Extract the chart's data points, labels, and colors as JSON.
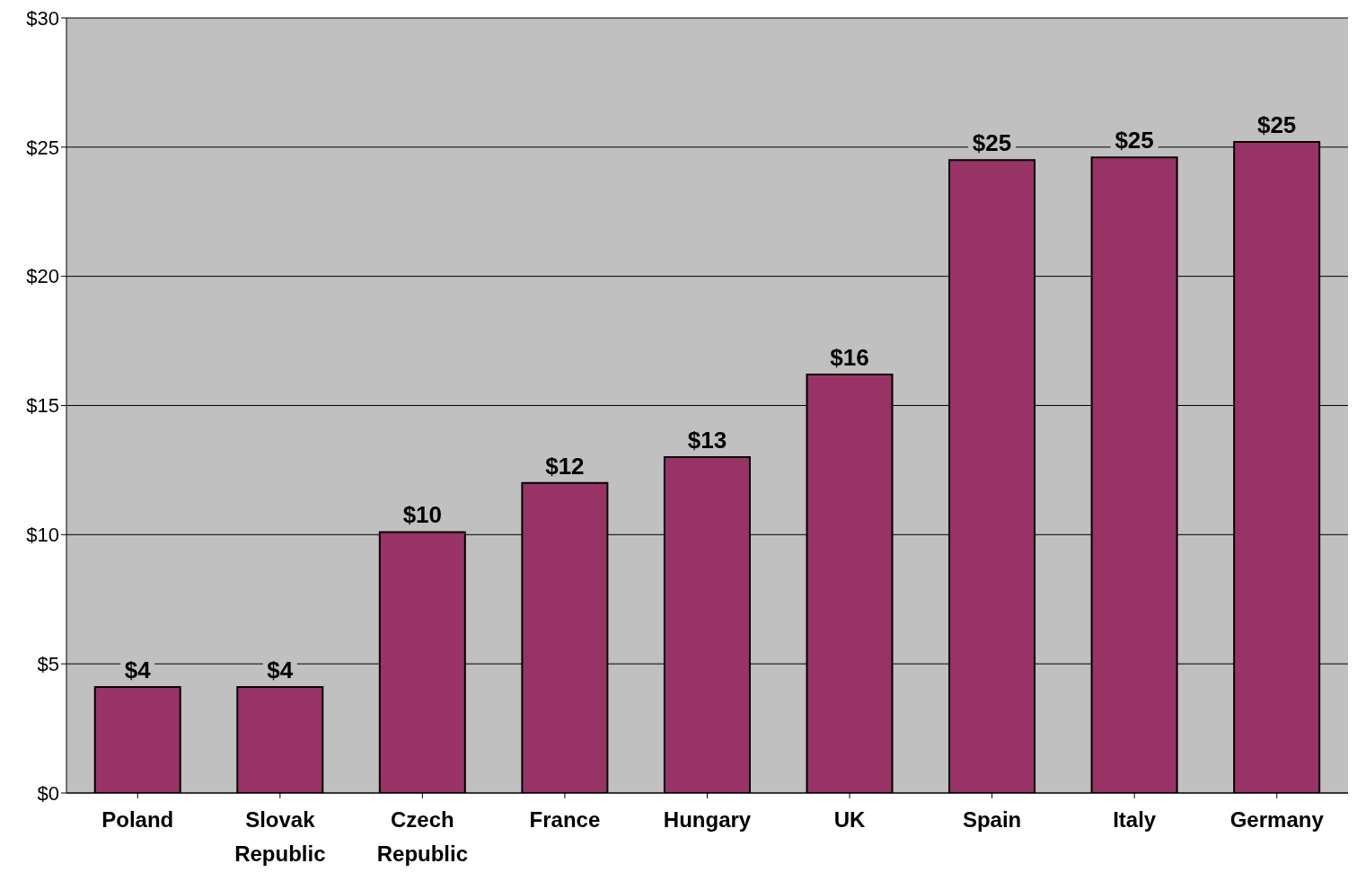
{
  "chart_data": {
    "type": "bar",
    "categories": [
      "Poland",
      "Slovak Republic",
      "Czech Republic",
      "France",
      "Hungary",
      "UK",
      "Spain",
      "Italy",
      "Germany"
    ],
    "values": [
      4.1,
      4.1,
      10.1,
      12.0,
      13.0,
      16.2,
      24.5,
      24.6,
      25.2
    ],
    "value_labels": [
      "$4",
      "$4",
      "$10",
      "$12",
      "$13",
      "$16",
      "$25",
      "$25",
      "$25"
    ],
    "color": "#993366",
    "ylim": [
      0,
      30
    ],
    "yticks": [
      {
        "value": 0,
        "label": "$0"
      },
      {
        "value": 5,
        "label": "$5"
      },
      {
        "value": 10,
        "label": "$10"
      },
      {
        "value": 15,
        "label": "$15"
      },
      {
        "value": 20,
        "label": "$20"
      },
      {
        "value": 25,
        "label": "$25"
      },
      {
        "value": 30,
        "label": "$30"
      }
    ],
    "grid": "y",
    "legend": false
  }
}
